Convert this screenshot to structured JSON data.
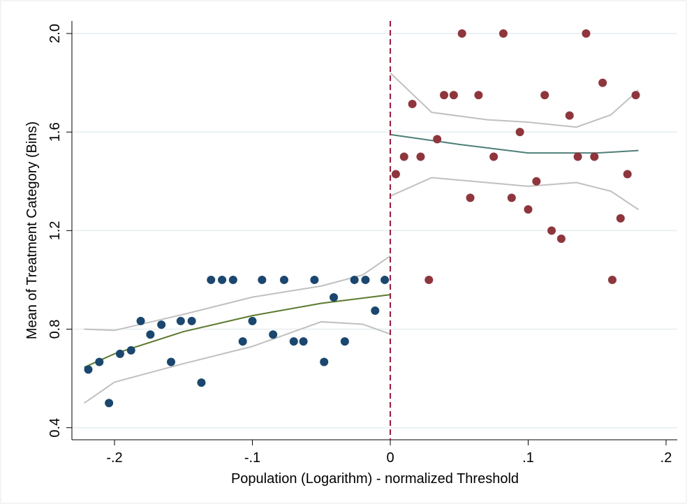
{
  "chart_data": {
    "type": "scatter",
    "x_label": "Population (Logarithm) - normalized Threshold",
    "y_label": "Mean of Treatment Category (Bins)",
    "xlim": [
      -0.2309,
      0.2081
    ],
    "ylim": [
      0.351,
      2.051
    ],
    "xticks": [
      {
        "value": -0.2,
        "label": "-.2"
      },
      {
        "value": -0.1,
        "label": "-.1"
      },
      0,
      {
        "value": 0.1,
        "label": ".1"
      },
      {
        "value": 0.2,
        "label": ".2"
      }
    ],
    "yticks": [
      0.4,
      0.8,
      1.2,
      1.6,
      {
        "value": 2,
        "label": "2.0"
      }
    ],
    "grid": true,
    "grid_color": "#e6eef0",
    "threshold_x": 0,
    "threshold_color": "#b5123a",
    "series": [
      {
        "kind": "scatter",
        "color": "#1a476f",
        "x": [
          -0.219,
          -0.211,
          -0.204,
          -0.196,
          -0.188,
          -0.181,
          -0.174,
          -0.166,
          -0.159,
          -0.152,
          -0.144,
          -0.137,
          -0.13,
          -0.122,
          -0.114,
          -0.107,
          -0.1,
          -0.093,
          -0.085,
          -0.077,
          -0.07,
          -0.063,
          -0.055,
          -0.048,
          -0.041,
          -0.033,
          -0.026,
          -0.018,
          -0.011,
          -0.004
        ],
        "values": [
          0.636,
          0.667,
          0.5,
          0.7,
          0.714,
          0.833,
          0.778,
          0.818,
          0.667,
          0.833,
          0.833,
          0.583,
          1.0,
          1.0,
          1.0,
          0.75,
          0.833,
          1.0,
          0.778,
          1.0,
          0.75,
          0.75,
          1.0,
          0.667,
          0.929,
          0.75,
          1.0,
          1.0,
          0.875,
          1.0
        ]
      },
      {
        "kind": "scatter",
        "color": "#90353b",
        "x": [
          0.004,
          0.01,
          0.016,
          0.022,
          0.028,
          0.034,
          0.039,
          0.046,
          0.052,
          0.058,
          0.064,
          0.075,
          0.082,
          0.088,
          0.094,
          0.1,
          0.106,
          0.112,
          0.117,
          0.124,
          0.13,
          0.136,
          0.142,
          0.148,
          0.154,
          0.161,
          0.167,
          0.172,
          0.178
        ],
        "values": [
          1.429,
          1.5,
          1.714,
          1.5,
          1.0,
          1.571,
          1.75,
          1.75,
          2.0,
          1.333,
          1.75,
          1.5,
          2.0,
          1.333,
          1.6,
          1.286,
          1.4,
          1.75,
          1.2,
          1.167,
          1.667,
          1.5,
          2.0,
          1.5,
          1.8,
          1.0,
          1.25,
          1.429,
          1.75
        ]
      },
      {
        "kind": "line",
        "color": "#c0c0c0",
        "x": [
          -0.222,
          -0.2,
          -0.15,
          -0.1,
          -0.05,
          -0.02,
          0
        ],
        "values": [
          0.8,
          0.795,
          0.86,
          0.93,
          0.975,
          1.02,
          1.097
        ]
      },
      {
        "kind": "line",
        "color": "#c0c0c0",
        "x": [
          -0.222,
          -0.2,
          -0.15,
          -0.1,
          -0.05,
          -0.02,
          0
        ],
        "values": [
          0.5,
          0.585,
          0.66,
          0.73,
          0.83,
          0.82,
          0.78
        ]
      },
      {
        "kind": "line",
        "color": "#5b7a2c",
        "x": [
          -0.222,
          -0.2,
          -0.15,
          -0.1,
          -0.05,
          0
        ],
        "values": [
          0.645,
          0.7,
          0.79,
          0.855,
          0.905,
          0.94
        ]
      },
      {
        "kind": "line",
        "color": "#c0c0c0",
        "x": [
          0,
          0.03,
          0.07,
          0.1,
          0.135,
          0.16,
          0.18
        ],
        "values": [
          1.84,
          1.68,
          1.65,
          1.64,
          1.62,
          1.67,
          1.77
        ]
      },
      {
        "kind": "line",
        "color": "#c0c0c0",
        "x": [
          0,
          0.03,
          0.07,
          0.1,
          0.135,
          0.16,
          0.18
        ],
        "values": [
          1.34,
          1.415,
          1.395,
          1.38,
          1.395,
          1.36,
          1.285
        ]
      },
      {
        "kind": "line",
        "color": "#4f7f78",
        "x": [
          0,
          0.05,
          0.1,
          0.15,
          0.18
        ],
        "values": [
          1.59,
          1.55,
          1.515,
          1.515,
          1.525
        ]
      }
    ]
  }
}
